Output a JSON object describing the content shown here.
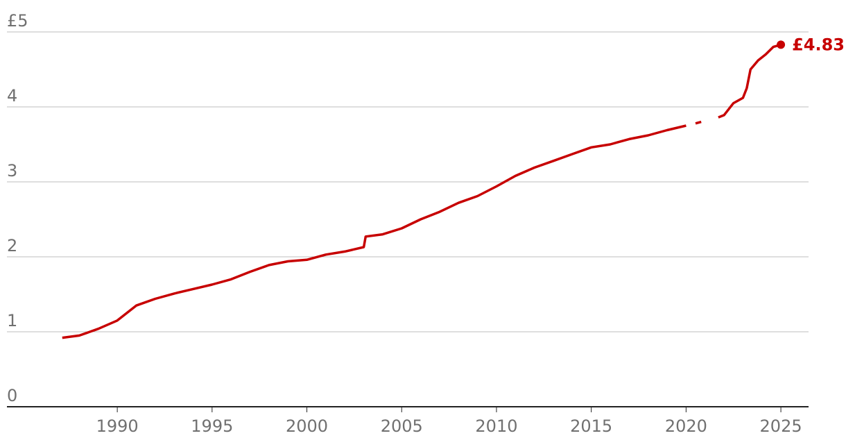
{
  "chart_data": {
    "type": "line",
    "x": [
      1987.1,
      1988,
      1989,
      1990,
      1991,
      1992,
      1993,
      1994,
      1995,
      1996,
      1997,
      1998,
      1999,
      2000,
      2001,
      2002,
      2003,
      2003.1,
      2004,
      2005,
      2006,
      2007,
      2008,
      2009,
      2010,
      2011,
      2012,
      2013,
      2014,
      2015,
      2016,
      2017,
      2018,
      2019,
      2020,
      2020.3,
      2020.5,
      2020.8,
      2021.2,
      2021.7,
      2022,
      2022.5,
      2023,
      2023.2,
      2023.4,
      2023.8,
      2024.2,
      2024.6,
      2025
    ],
    "values": [
      0.92,
      0.95,
      1.04,
      1.15,
      1.35,
      1.44,
      1.51,
      1.57,
      1.63,
      1.7,
      1.8,
      1.89,
      1.94,
      1.96,
      2.03,
      2.07,
      2.13,
      2.27,
      2.3,
      2.38,
      2.5,
      2.6,
      2.72,
      2.81,
      2.94,
      3.08,
      3.19,
      3.28,
      3.37,
      3.46,
      3.5,
      3.57,
      3.62,
      3.69,
      3.75,
      null,
      3.78,
      3.8,
      null,
      3.86,
      3.89,
      4.05,
      4.12,
      4.25,
      4.5,
      4.62,
      4.7,
      4.8,
      4.83
    ],
    "value_labels": [
      null,
      null,
      null,
      null,
      null,
      null,
      null,
      null,
      null,
      null,
      null,
      null,
      null,
      null,
      null,
      null,
      null,
      null,
      null,
      null,
      null,
      null,
      null,
      null,
      null,
      null,
      null,
      null,
      null,
      null,
      null,
      null,
      null,
      null,
      null,
      null,
      null,
      null,
      null,
      null,
      null,
      null,
      null,
      null,
      null,
      null,
      null,
      null,
      "£4.83"
    ],
    "color": "#c70000",
    "xlim": [
      1984.18,
      2026.46
    ],
    "ylim": [
      0,
      5
    ],
    "xticks": [
      1990,
      1995,
      2000,
      2005,
      2010,
      2015,
      2020,
      2025
    ],
    "yticks": [
      0,
      1,
      2,
      3,
      4,
      {
        "value": 5,
        "label": "£5"
      }
    ],
    "grid": true
  }
}
